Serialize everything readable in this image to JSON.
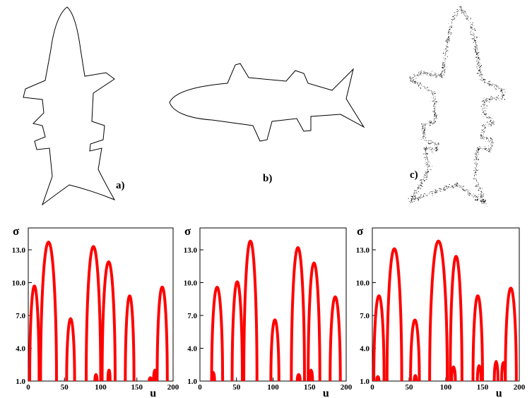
{
  "panel_labels": [
    "a)",
    "b)",
    "c)"
  ],
  "chart_data": [
    {
      "type": "css",
      "xlabel": "u",
      "ylabel": "σ",
      "color": "#ff0000",
      "xlim": [
        0,
        200
      ],
      "ylim": [
        1,
        15
      ],
      "xticks": [
        0,
        50,
        100,
        150,
        200
      ],
      "yticks": [
        {
          "value": 1,
          "label": "1.0"
        },
        {
          "value": 4,
          "label": "4.0"
        },
        {
          "value": 7,
          "label": "7.0"
        },
        {
          "value": 10,
          "label": "10.0"
        },
        {
          "value": 13,
          "label": "13.0"
        }
      ],
      "x_left": [
        2,
        17,
        53,
        80,
        102,
        134,
        178,
        92,
        110,
        167,
        173
      ],
      "x_right": [
        15,
        39,
        64,
        100,
        120,
        146,
        192,
        95,
        113,
        170,
        177
      ],
      "values": [
        9.7,
        13.7,
        6.7,
        13.3,
        11.9,
        8.8,
        9.6,
        1.6,
        2.0,
        1.3,
        2.0
      ]
    },
    {
      "type": "css",
      "xlabel": "u",
      "ylabel": "σ",
      "color": "#ff0000",
      "xlim": [
        0,
        200
      ],
      "ylim": [
        1,
        15
      ],
      "xticks": [
        0,
        50,
        100,
        150,
        200
      ],
      "yticks": [
        {
          "value": 1,
          "label": "1.0"
        },
        {
          "value": 4,
          "label": "4.0"
        },
        {
          "value": 7,
          "label": "7.0"
        },
        {
          "value": 10,
          "label": "10.0"
        },
        {
          "value": 13,
          "label": "13.0"
        }
      ],
      "x_left": [
        16,
        44,
        60,
        97,
        125,
        148,
        178,
        16,
        133,
        150
      ],
      "x_right": [
        31,
        58,
        78,
        108,
        143,
        164,
        192,
        20,
        137,
        154
      ],
      "values": [
        9.6,
        10.1,
        13.8,
        6.6,
        13.2,
        11.8,
        8.7,
        1.8,
        1.6,
        2.0
      ]
    },
    {
      "type": "css",
      "xlabel": "u",
      "ylabel": "σ",
      "color": "#ff0000",
      "xlim": [
        0,
        200
      ],
      "ylim": [
        1,
        15
      ],
      "xticks": [
        0,
        50,
        100,
        150,
        200
      ],
      "yticks": [
        {
          "value": 1,
          "label": "1.0"
        },
        {
          "value": 4,
          "label": "4.0"
        },
        {
          "value": 7,
          "label": "7.0"
        },
        {
          "value": 10,
          "label": "10.0"
        },
        {
          "value": 13,
          "label": "13.0"
        }
      ],
      "x_left": [
        2,
        20,
        52,
        78,
        106,
        137,
        181,
        6,
        57,
        108,
        143,
        166,
        176
      ],
      "x_right": [
        16,
        40,
        64,
        102,
        122,
        150,
        196,
        9,
        60,
        113,
        148,
        171,
        181
      ],
      "values": [
        8.8,
        13.1,
        6.6,
        13.8,
        12.4,
        8.8,
        9.5,
        1.4,
        1.5,
        2.3,
        2.4,
        2.8,
        2.7
      ]
    }
  ]
}
